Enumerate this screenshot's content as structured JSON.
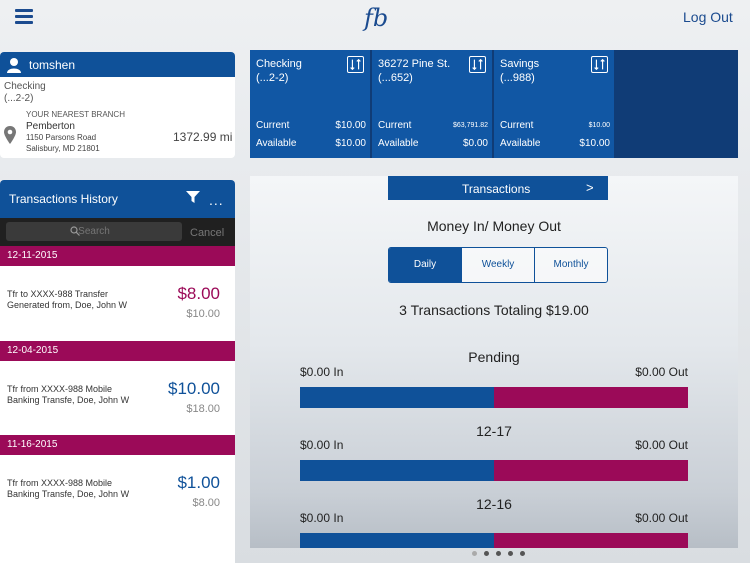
{
  "header": {
    "menu_icon": "hamburger-menu-icon",
    "logo_text": "fb",
    "logout_label": "Log Out"
  },
  "user_card": {
    "username": "tomshen",
    "account_name": "Checking",
    "account_number": "(...2-2)",
    "branch_label": "YOUR NEAREST BRANCH",
    "branch_name": "Pemberton",
    "branch_address_1": "1150 Parsons Road",
    "branch_address_2": "Salisbury, MD 21801",
    "branch_distance": "1372.99 mi"
  },
  "accounts": [
    {
      "name": "Checking",
      "number": "(...2-2)",
      "current_label": "Current",
      "current": "$10.00",
      "available_label": "Available",
      "available": "$10.00"
    },
    {
      "name": "36272 Pine St.",
      "number": "(...652)",
      "current_label": "Current",
      "current": "$63,791.82",
      "available_label": "Available",
      "available": "$0.00"
    },
    {
      "name": "Savings",
      "number": "(...988)",
      "current_label": "Current",
      "current": "$10.00",
      "available_label": "Available",
      "available": "$10.00"
    }
  ],
  "history": {
    "title": "Transactions History",
    "search_placeholder": "Search",
    "cancel_label": "Cancel",
    "more_label": "...",
    "groups": [
      {
        "date": "12-11-2015",
        "desc_1": "Tfr to XXXX-988 Transfer",
        "desc_2": "Generated from, Doe, John W",
        "amount": "$8.00",
        "balance": "$10.00",
        "amount_color": "#9b0a58"
      },
      {
        "date": "12-04-2015",
        "desc_1": "Tfr from XXXX-988 Mobile",
        "desc_2": "Banking Transfe, Doe, John W",
        "amount": "$10.00",
        "balance": "$18.00",
        "amount_color": "#0f5199"
      },
      {
        "date": "11-16-2015",
        "desc_1": "Tfr from XXXX-988 Mobile",
        "desc_2": "Banking Transfe, Doe, John W",
        "amount": "$1.00",
        "balance": "$8.00",
        "amount_color": "#0f5199"
      }
    ]
  },
  "main": {
    "transactions_label": "Transactions",
    "transactions_arrow": ">",
    "section_title": "Money In/ Money Out",
    "periods": [
      "Daily",
      "Weekly",
      "Monthly"
    ],
    "active_period": "Daily",
    "total_text": "3 Transactions Totaling $19.00",
    "groups": [
      {
        "label": "Pending",
        "in_label": "$0.00 In",
        "out_label": "$0.00 Out",
        "in_fraction": 0.5
      },
      {
        "label": "12-17",
        "in_label": "$0.00 In",
        "out_label": "$0.00 Out",
        "in_fraction": 0.5
      },
      {
        "label": "12-16",
        "in_label": "$0.00 In",
        "out_label": "$0.00 Out",
        "in_fraction": 0.5
      }
    ]
  },
  "pager": {
    "count": 5,
    "active_index": 0
  },
  "colors": {
    "brand_blue": "#0f5199",
    "accent_magenta": "#9b0a58"
  }
}
